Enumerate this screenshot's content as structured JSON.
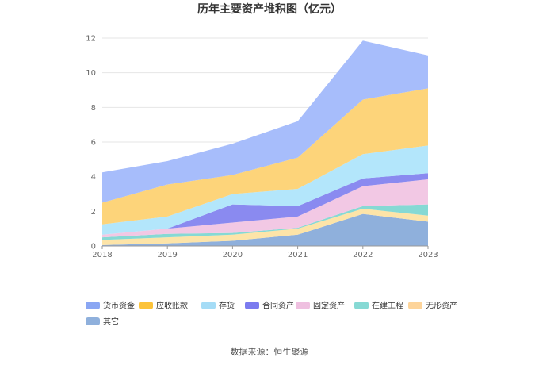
{
  "chart_data": {
    "type": "area",
    "stacked": true,
    "title": "历年主要资产堆积图（亿元）",
    "xlabel": "",
    "ylabel": "",
    "x": [
      "2018",
      "2019",
      "2020",
      "2021",
      "2022",
      "2023"
    ],
    "ylim": [
      0,
      12
    ],
    "yticks": [
      0,
      2,
      4,
      6,
      8,
      10,
      12
    ],
    "grid": true,
    "legend_position": "bottom",
    "series": [
      {
        "name": "其它",
        "color": "#8fb0dc",
        "values": [
          0.05,
          0.15,
          0.3,
          0.65,
          1.85,
          1.4
        ]
      },
      {
        "name": "无形资产",
        "color": "#fde4a8",
        "values": [
          0.3,
          0.35,
          0.35,
          0.35,
          0.3,
          0.35
        ]
      },
      {
        "name": "在建工程",
        "color": "#86d9d4",
        "values": [
          0.15,
          0.2,
          0.1,
          0.05,
          0.15,
          0.65
        ]
      },
      {
        "name": "固定资产",
        "color": "#f2c8e4",
        "values": [
          0.15,
          0.3,
          0.6,
          0.65,
          1.15,
          1.45
        ]
      },
      {
        "name": "合同资产",
        "color": "#8a8af0",
        "values": [
          0.0,
          0.0,
          1.05,
          0.6,
          0.45,
          0.35
        ]
      },
      {
        "name": "存货",
        "color": "#b3e6fb",
        "values": [
          0.6,
          0.7,
          0.6,
          1.0,
          1.4,
          1.6
        ]
      },
      {
        "name": "应收账款",
        "color": "#fdd47a",
        "values": [
          1.25,
          1.85,
          1.1,
          1.8,
          3.15,
          3.3
        ]
      },
      {
        "name": "货币资金",
        "color": "#a7bdfb",
        "values": [
          1.75,
          1.35,
          1.8,
          2.1,
          3.4,
          1.9
        ]
      }
    ],
    "legend_order": [
      "货币资金",
      "应收账款",
      "存货",
      "合同资产",
      "固定资产",
      "在建工程",
      "无形资产",
      "其它"
    ],
    "legend_colors": {
      "货币资金": "#8aa6f3",
      "应收账款": "#fcc33a",
      "存货": "#a5dcf6",
      "合同资产": "#7b7bef",
      "固定资产": "#efc0e0",
      "在建工程": "#86d9d4",
      "无形资产": "#fdd49a",
      "其它": "#8fb0dc"
    }
  },
  "source_text": "数据来源：恒生聚源"
}
